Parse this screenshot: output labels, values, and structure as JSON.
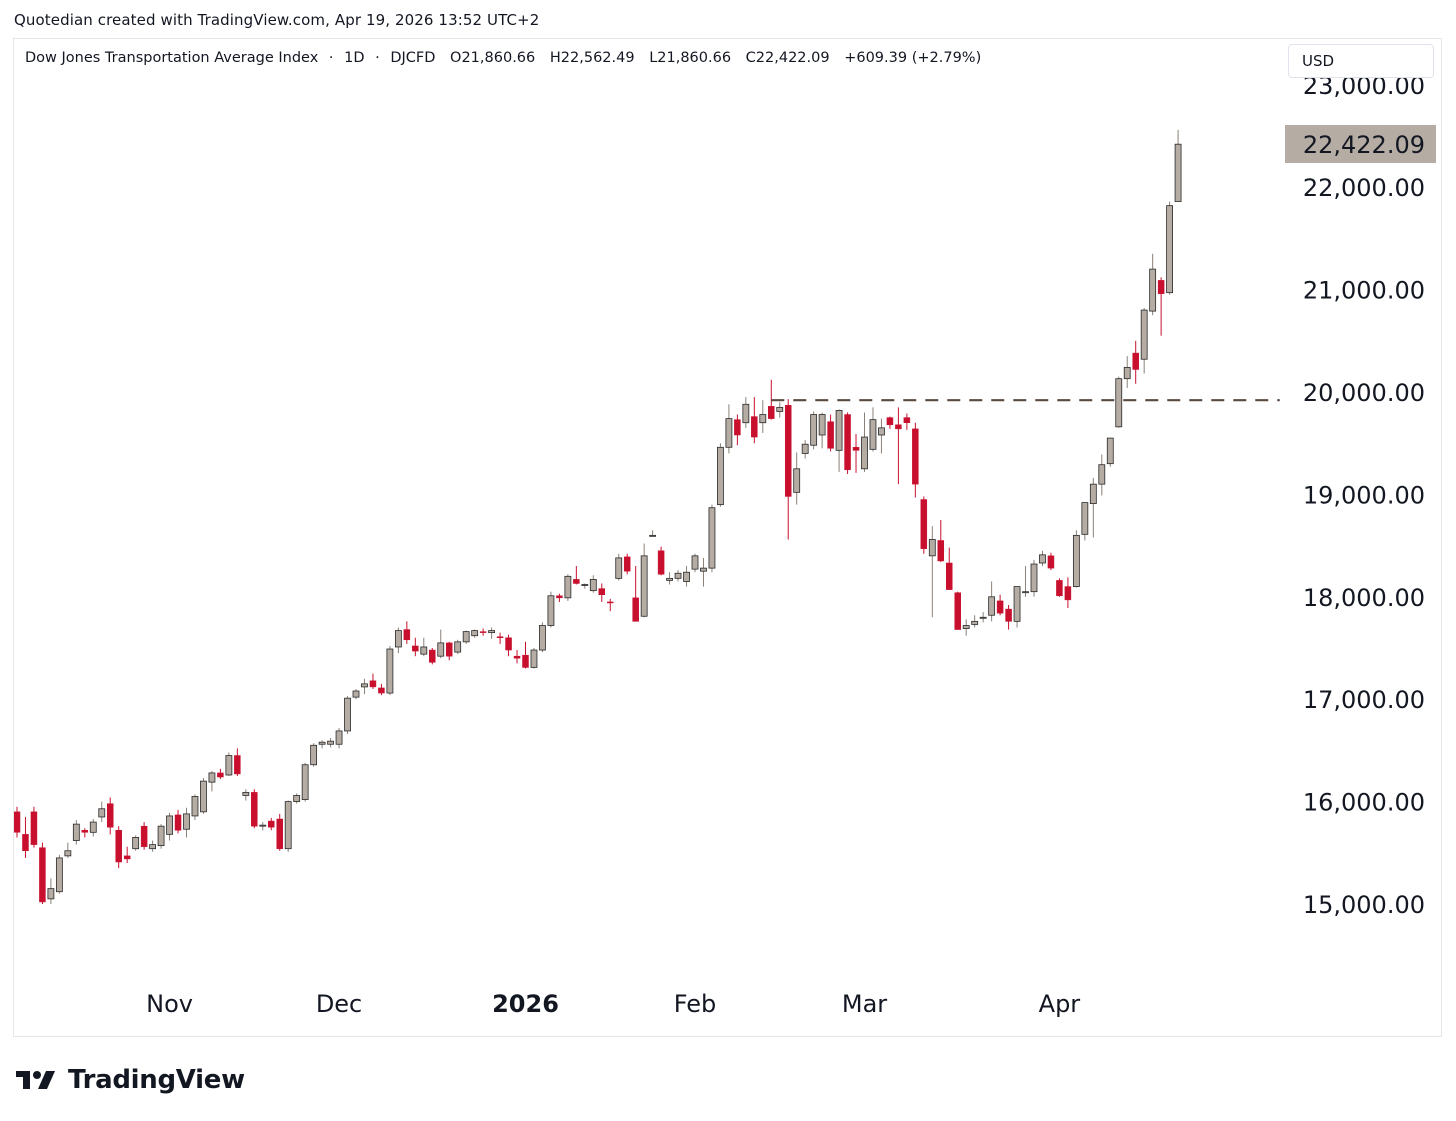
{
  "header": {
    "attribution": "Quotedian created with TradingView.com, Apr 19, 2026 13:52 UTC+2"
  },
  "legend": {
    "symbol_name": "Dow Jones Transportation Average Index",
    "interval": "1D",
    "ticker": "DJCFD",
    "open": "O21,860.66",
    "high": "H22,562.49",
    "low": "L21,860.66",
    "close": "C22,422.09",
    "change": "+609.39 (+2.79%)",
    "sep": "·"
  },
  "currency": "USD",
  "last_price_label": "22,422.09",
  "brand": {
    "name": "TradingView"
  },
  "colors": {
    "up": "#b5aca4",
    "down": "#c8102e",
    "wick_up": "#8a8178",
    "wick_down": "#c8102e",
    "last_price_bg": "#b5aca4",
    "resistance_line": "#5a4a40"
  },
  "chart_data": {
    "type": "candlestick",
    "symbol": "Dow Jones Transportation Average Index",
    "interval": "1D",
    "y_axis": {
      "ylim": [
        14450,
        23000
      ],
      "ticks": [
        15000,
        16000,
        17000,
        18000,
        19000,
        20000,
        21000,
        22000,
        23000
      ],
      "tick_labels": [
        "15,000.00",
        "16,000.00",
        "17,000.00",
        "18,000.00",
        "19,000.00",
        "20,000.00",
        "21,000.00",
        "22,000.00",
        "23,000.00"
      ]
    },
    "x_axis": {
      "ticks": [
        {
          "label": "Nov",
          "index": 18,
          "bold": false
        },
        {
          "label": "Dec",
          "index": 38,
          "bold": false
        },
        {
          "label": "2026",
          "index": 60,
          "bold": true
        },
        {
          "label": "Feb",
          "index": 80,
          "bold": false
        },
        {
          "label": "Mar",
          "index": 100,
          "bold": false
        },
        {
          "label": "Apr",
          "index": 123,
          "bold": false
        }
      ]
    },
    "resistance_level": {
      "value": 19920,
      "from_index": 89,
      "to_index": 149
    },
    "last_price": 22422.09,
    "ohlc": [
      [
        15900,
        15950,
        15650,
        15700
      ],
      [
        15680,
        15850,
        15450,
        15520
      ],
      [
        15900,
        15950,
        15550,
        15580
      ],
      [
        15550,
        15600,
        15000,
        15020
      ],
      [
        15050,
        15250,
        15000,
        15150
      ],
      [
        15120,
        15480,
        15100,
        15450
      ],
      [
        15470,
        15600,
        15450,
        15520
      ],
      [
        15620,
        15820,
        15580,
        15780
      ],
      [
        15720,
        15740,
        15650,
        15700
      ],
      [
        15700,
        15830,
        15660,
        15800
      ],
      [
        15850,
        16000,
        15800,
        15930
      ],
      [
        15980,
        16040,
        15680,
        15750
      ],
      [
        15720,
        15760,
        15350,
        15410
      ],
      [
        15470,
        15560,
        15400,
        15440
      ],
      [
        15540,
        15670,
        15520,
        15650
      ],
      [
        15760,
        15800,
        15530,
        15560
      ],
      [
        15540,
        15620,
        15510,
        15580
      ],
      [
        15570,
        15780,
        15540,
        15760
      ],
      [
        15680,
        15890,
        15620,
        15860
      ],
      [
        15870,
        15920,
        15690,
        15720
      ],
      [
        15730,
        15940,
        15650,
        15880
      ],
      [
        15860,
        16070,
        15820,
        16050
      ],
      [
        15900,
        16230,
        15880,
        16200
      ],
      [
        16190,
        16300,
        16100,
        16280
      ],
      [
        16280,
        16320,
        16220,
        16240
      ],
      [
        16260,
        16480,
        16250,
        16450
      ],
      [
        16450,
        16520,
        16250,
        16270
      ],
      [
        16060,
        16120,
        16010,
        16090
      ],
      [
        16090,
        16120,
        15740,
        15760
      ],
      [
        15760,
        15800,
        15720,
        15770
      ],
      [
        15810,
        15840,
        15720,
        15750
      ],
      [
        15830,
        15880,
        15520,
        15540
      ],
      [
        15540,
        16010,
        15510,
        16000
      ],
      [
        16000,
        16080,
        15980,
        16060
      ],
      [
        16020,
        16380,
        16000,
        16360
      ],
      [
        16360,
        16570,
        16340,
        16550
      ],
      [
        16560,
        16600,
        16520,
        16580
      ],
      [
        16560,
        16620,
        16530,
        16590
      ],
      [
        16560,
        16720,
        16520,
        16690
      ],
      [
        16690,
        17030,
        16660,
        17010
      ],
      [
        17020,
        17100,
        17000,
        17080
      ],
      [
        17120,
        17200,
        17050,
        17150
      ],
      [
        17180,
        17250,
        17100,
        17120
      ],
      [
        17110,
        17150,
        17040,
        17060
      ],
      [
        17060,
        17520,
        17040,
        17490
      ],
      [
        17510,
        17700,
        17450,
        17670
      ],
      [
        17680,
        17760,
        17540,
        17580
      ],
      [
        17520,
        17600,
        17420,
        17470
      ],
      [
        17440,
        17600,
        17420,
        17510
      ],
      [
        17480,
        17500,
        17340,
        17360
      ],
      [
        17420,
        17680,
        17400,
        17550
      ],
      [
        17550,
        17560,
        17380,
        17420
      ],
      [
        17460,
        17580,
        17440,
        17560
      ],
      [
        17560,
        17670,
        17540,
        17660
      ],
      [
        17620,
        17680,
        17600,
        17670
      ],
      [
        17660,
        17690,
        17620,
        17650
      ],
      [
        17650,
        17700,
        17590,
        17670
      ],
      [
        17610,
        17650,
        17540,
        17600
      ],
      [
        17600,
        17630,
        17420,
        17480
      ],
      [
        17420,
        17480,
        17350,
        17400
      ],
      [
        17430,
        17560,
        17300,
        17310
      ],
      [
        17310,
        17500,
        17300,
        17480
      ],
      [
        17480,
        17750,
        17460,
        17720
      ],
      [
        17720,
        18050,
        17700,
        18010
      ],
      [
        18010,
        18030,
        17950,
        17990
      ],
      [
        17990,
        18220,
        17960,
        18200
      ],
      [
        18170,
        18300,
        18120,
        18130
      ],
      [
        18110,
        18130,
        18080,
        18120
      ],
      [
        18060,
        18210,
        18040,
        18170
      ],
      [
        18080,
        18130,
        17950,
        18020
      ],
      [
        17950,
        17980,
        17860,
        17940
      ],
      [
        18180,
        18420,
        18160,
        18380
      ],
      [
        18390,
        18420,
        18220,
        18250
      ],
      [
        17990,
        18300,
        17760,
        17760
      ],
      [
        17810,
        18520,
        17800,
        18400
      ],
      [
        18600,
        18650,
        18600,
        18600
      ],
      [
        18450,
        18490,
        18210,
        18220
      ],
      [
        18160,
        18240,
        18120,
        18180
      ],
      [
        18180,
        18260,
        18150,
        18230
      ],
      [
        18150,
        18300,
        18100,
        18240
      ],
      [
        18270,
        18420,
        18240,
        18400
      ],
      [
        18250,
        18380,
        18100,
        18280
      ],
      [
        18280,
        18900,
        18240,
        18870
      ],
      [
        18900,
        19500,
        18880,
        19460
      ],
      [
        19460,
        19880,
        19400,
        19740
      ],
      [
        19730,
        19780,
        19480,
        19580
      ],
      [
        19700,
        19950,
        19650,
        19880
      ],
      [
        19760,
        19950,
        19500,
        19560
      ],
      [
        19700,
        19920,
        19600,
        19780
      ],
      [
        19860,
        20120,
        19730,
        19740
      ],
      [
        19810,
        19900,
        19750,
        19850
      ],
      [
        19870,
        19930,
        18560,
        18980
      ],
      [
        19020,
        19410,
        18900,
        19250
      ],
      [
        19400,
        19530,
        19350,
        19490
      ],
      [
        19480,
        19810,
        19440,
        19780
      ],
      [
        19580,
        19800,
        19450,
        19780
      ],
      [
        19710,
        19780,
        19420,
        19450
      ],
      [
        19430,
        19830,
        19220,
        19820
      ],
      [
        19780,
        19800,
        19200,
        19240
      ],
      [
        19460,
        19590,
        19210,
        19430
      ],
      [
        19250,
        19800,
        19220,
        19560
      ],
      [
        19440,
        19850,
        19420,
        19730
      ],
      [
        19580,
        19740,
        19400,
        19650
      ],
      [
        19750,
        19760,
        19640,
        19680
      ],
      [
        19680,
        19850,
        19100,
        19640
      ],
      [
        19750,
        19790,
        19630,
        19700
      ],
      [
        19640,
        19700,
        18970,
        19100
      ],
      [
        18950,
        18980,
        18420,
        18470
      ],
      [
        18400,
        18690,
        17800,
        18560
      ],
      [
        18550,
        18750,
        18340,
        18350
      ],
      [
        18330,
        18480,
        18130,
        18070
      ],
      [
        18040,
        18050,
        17750,
        17680
      ],
      [
        17690,
        17780,
        17620,
        17720
      ],
      [
        17730,
        17820,
        17700,
        17760
      ],
      [
        17790,
        17850,
        17750,
        17800
      ],
      [
        17820,
        18150,
        17760,
        18000
      ],
      [
        17960,
        18020,
        17820,
        17840
      ],
      [
        17880,
        17920,
        17680,
        17760
      ],
      [
        17760,
        18100,
        17700,
        18100
      ],
      [
        18040,
        18300,
        18000,
        18050
      ],
      [
        18050,
        18360,
        18000,
        18320
      ],
      [
        18330,
        18450,
        18300,
        18410
      ],
      [
        18400,
        18430,
        18260,
        18280
      ],
      [
        18160,
        18180,
        18000,
        18010
      ],
      [
        18100,
        18190,
        17890,
        17970
      ],
      [
        18100,
        18650,
        18090,
        18600
      ],
      [
        18610,
        18910,
        18550,
        18920
      ],
      [
        18910,
        19160,
        18580,
        19100
      ],
      [
        19100,
        19390,
        18990,
        19290
      ],
      [
        19300,
        19550,
        19270,
        19550
      ],
      [
        19660,
        20150,
        19650,
        20130
      ],
      [
        20130,
        20350,
        20040,
        20240
      ],
      [
        20380,
        20500,
        20080,
        20220
      ],
      [
        20320,
        20820,
        20180,
        20800
      ],
      [
        20790,
        21350,
        20750,
        21200
      ],
      [
        21090,
        21120,
        20550,
        20960
      ],
      [
        20970,
        21860,
        20950,
        21820
      ],
      [
        21860,
        22560,
        21860,
        22420
      ]
    ]
  }
}
